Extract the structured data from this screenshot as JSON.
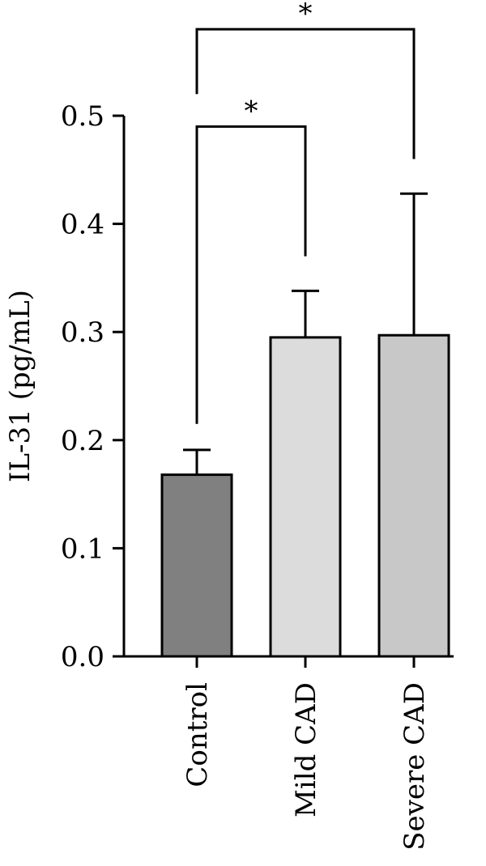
{
  "chart_data": {
    "type": "bar",
    "categories": [
      "Control",
      "Mild CAD",
      "Severe CAD"
    ],
    "values": [
      0.168,
      0.295,
      0.297
    ],
    "error_upper": [
      0.191,
      0.338,
      0.428
    ],
    "bar_colors": [
      "#808080",
      "#dcdcdc",
      "#c8c8c8"
    ],
    "title": "",
    "xlabel": "",
    "ylabel": "IL-31 (pg/mL)",
    "ylim": [
      0,
      0.5
    ],
    "yticks": [
      0.0,
      0.1,
      0.2,
      0.3,
      0.4,
      0.5
    ],
    "ytick_labels": [
      "0.0",
      "0.1",
      "0.2",
      "0.3",
      "0.4",
      "0.5"
    ],
    "grid": false,
    "significance": [
      {
        "from": "Control",
        "to": "Mild CAD",
        "label": "*",
        "y": 0.49,
        "from_drop": 0.215,
        "to_drop": 0.37
      },
      {
        "from": "Control",
        "to": "Severe CAD",
        "label": "*",
        "y": 0.58,
        "from_drop": 0.52,
        "to_drop": 0.46
      }
    ]
  }
}
